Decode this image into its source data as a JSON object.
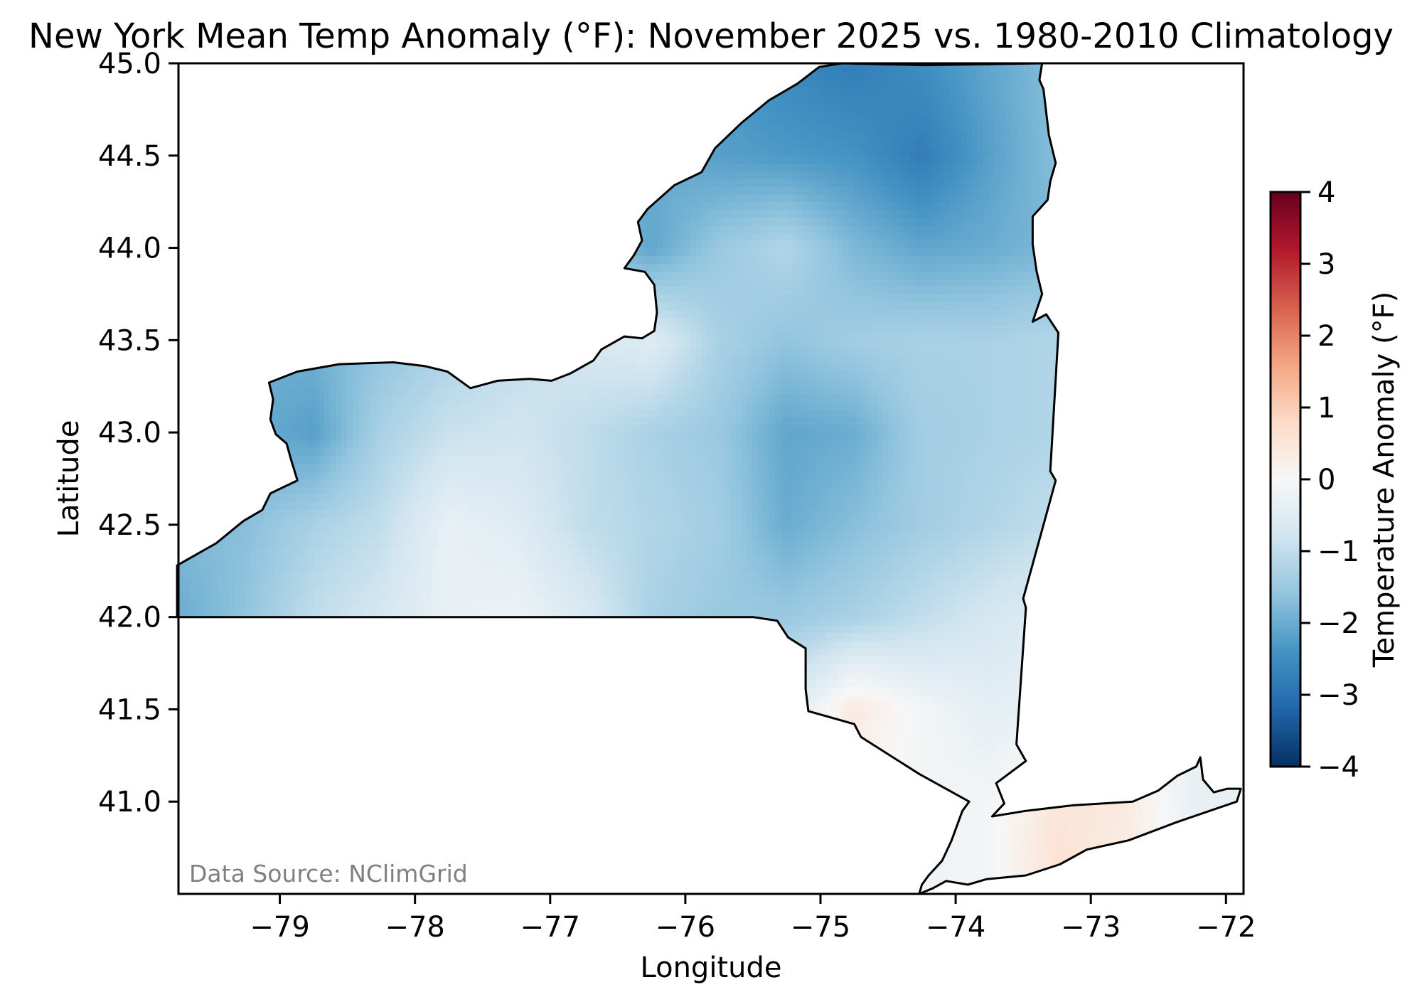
{
  "chart_data": {
    "type": "heatmap",
    "title": "New York Mean Temp Anomaly (°F): November 2025 vs. 1980-2010 Climatology",
    "xlabel": "Longitude",
    "ylabel": "Latitude",
    "xlim": [
      -79.75,
      -71.87
    ],
    "ylim": [
      40.5,
      45.0
    ],
    "grid_lines": false,
    "x_ticks": [
      -79,
      -78,
      -77,
      -76,
      -75,
      -74,
      -73,
      -72
    ],
    "x_tick_labels": [
      "−79",
      "−78",
      "−77",
      "−76",
      "−75",
      "−74",
      "−73",
      "−72"
    ],
    "y_ticks": [
      41.0,
      41.5,
      42.0,
      42.5,
      43.0,
      43.5,
      44.0,
      44.5,
      45.0
    ],
    "y_tick_labels": [
      "41.0",
      "41.5",
      "42.0",
      "42.5",
      "43.0",
      "43.5",
      "44.0",
      "44.5",
      "45.0"
    ],
    "annotation": "Data Source: NClimGrid",
    "colorbar": {
      "label": "Temperature Anomaly (°F)",
      "range": [
        -4,
        4
      ],
      "position": "right",
      "colormap": "RdBu_r",
      "colors": [
        "#053061",
        "#2166ac",
        "#4393c3",
        "#92c5de",
        "#d1e5f0",
        "#f7f7f7",
        "#fddbc7",
        "#f4a582",
        "#d6604d",
        "#b2182b",
        "#67001f"
      ],
      "ticks": [
        -4,
        -3,
        -2,
        -1,
        0,
        1,
        2,
        3,
        4
      ],
      "tick_labels": [
        "−4",
        "−3",
        "−2",
        "−1",
        "0",
        "1",
        "2",
        "3",
        "4"
      ]
    },
    "grid": {
      "lon": [
        -79.75,
        -79.25,
        -78.75,
        -78.25,
        -77.75,
        -77.25,
        -76.75,
        -76.25,
        -75.75,
        -75.25,
        -74.75,
        -74.25,
        -73.75,
        -73.25,
        -72.75,
        -72.25,
        -71.75
      ],
      "lat": [
        45.0,
        44.5,
        44.0,
        43.5,
        43.0,
        42.5,
        42.0,
        41.5,
        41.0,
        40.5
      ],
      "values": [
        [
          -2.0,
          -2.0,
          -2.0,
          -1.8,
          -1.6,
          -1.5,
          -1.6,
          -2.0,
          -2.3,
          -2.6,
          -2.8,
          -2.5,
          -2.1,
          -1.7,
          -1.0,
          -0.5,
          -0.5
        ],
        [
          -2.0,
          -2.0,
          -2.0,
          -1.8,
          -1.6,
          -1.5,
          -1.6,
          -2.0,
          -2.2,
          -2.3,
          -2.4,
          -2.8,
          -2.2,
          -1.7,
          -1.0,
          -0.5,
          -0.5
        ],
        [
          -2.0,
          -2.0,
          -2.0,
          -1.8,
          -1.6,
          -1.5,
          -1.6,
          -2.1,
          -1.5,
          -1.2,
          -1.8,
          -2.1,
          -2.0,
          -1.8,
          -1.0,
          -0.5,
          -0.5
        ],
        [
          -2.0,
          -2.0,
          -1.9,
          -1.6,
          -1.3,
          -1.0,
          -0.7,
          -0.5,
          -1.3,
          -1.6,
          -1.4,
          -1.3,
          -1.3,
          -1.2,
          -1.0,
          -0.5,
          -0.5
        ],
        [
          -1.8,
          -2.0,
          -2.2,
          -1.3,
          -0.9,
          -0.8,
          -1.0,
          -1.3,
          -1.5,
          -2.1,
          -2.0,
          -1.4,
          -1.3,
          -1.2,
          -1.0,
          -0.5,
          -0.5
        ],
        [
          -1.8,
          -1.7,
          -1.3,
          -1.0,
          -0.3,
          -0.5,
          -1.0,
          -1.2,
          -1.4,
          -2.0,
          -1.7,
          -1.4,
          -1.2,
          -1.0,
          -0.8,
          -0.5,
          -0.5
        ],
        [
          -2.0,
          -1.6,
          -1.0,
          -0.7,
          -0.3,
          -0.2,
          -0.6,
          -1.3,
          -1.5,
          -1.5,
          -1.3,
          -1.0,
          -0.7,
          -0.5,
          -0.5,
          -0.5,
          -0.5
        ],
        [
          -1.5,
          -1.5,
          -1.2,
          -0.8,
          -0.5,
          -0.4,
          -0.5,
          -0.7,
          -0.8,
          -0.6,
          0.4,
          -0.1,
          -0.4,
          -0.3,
          -0.3,
          -0.3,
          -0.3
        ],
        [
          -1.0,
          -1.0,
          -0.8,
          -0.6,
          -0.5,
          -0.4,
          -0.4,
          -0.4,
          -0.4,
          -0.3,
          -0.1,
          -0.1,
          -0.1,
          0.5,
          0.4,
          -0.3,
          -0.3
        ],
        [
          -1.0,
          -1.0,
          -0.8,
          -0.6,
          -0.5,
          -0.4,
          -0.4,
          -0.4,
          -0.4,
          -0.3,
          -0.2,
          -0.2,
          -0.1,
          0.6,
          0.3,
          -0.2,
          -0.2
        ]
      ]
    },
    "boundary": [
      [
        -79.76,
        42.0
      ],
      [
        -79.76,
        42.28
      ],
      [
        -79.47,
        42.4
      ],
      [
        -79.27,
        42.52
      ],
      [
        -79.13,
        42.58
      ],
      [
        -79.07,
        42.67
      ],
      [
        -78.87,
        42.74
      ],
      [
        -78.92,
        42.86
      ],
      [
        -78.95,
        42.94
      ],
      [
        -79.03,
        42.99
      ],
      [
        -79.07,
        43.07
      ],
      [
        -79.05,
        43.18
      ],
      [
        -79.08,
        43.27
      ],
      [
        -78.87,
        43.33
      ],
      [
        -78.56,
        43.37
      ],
      [
        -78.16,
        43.38
      ],
      [
        -77.93,
        43.36
      ],
      [
        -77.76,
        43.33
      ],
      [
        -77.59,
        43.24
      ],
      [
        -77.39,
        43.28
      ],
      [
        -77.15,
        43.29
      ],
      [
        -76.99,
        43.28
      ],
      [
        -76.85,
        43.32
      ],
      [
        -76.68,
        43.39
      ],
      [
        -76.62,
        43.45
      ],
      [
        -76.45,
        43.52
      ],
      [
        -76.32,
        43.51
      ],
      [
        -76.23,
        43.55
      ],
      [
        -76.21,
        43.65
      ],
      [
        -76.23,
        43.8
      ],
      [
        -76.3,
        43.87
      ],
      [
        -76.45,
        43.89
      ],
      [
        -76.38,
        43.96
      ],
      [
        -76.32,
        44.04
      ],
      [
        -76.35,
        44.14
      ],
      [
        -76.28,
        44.21
      ],
      [
        -76.08,
        44.34
      ],
      [
        -75.88,
        44.41
      ],
      [
        -75.78,
        44.54
      ],
      [
        -75.58,
        44.68
      ],
      [
        -75.38,
        44.8
      ],
      [
        -75.17,
        44.89
      ],
      [
        -75.01,
        44.98
      ],
      [
        -74.84,
        45.0
      ],
      [
        -74.23,
        44.99
      ],
      [
        -73.36,
        45.0
      ],
      [
        -73.38,
        44.91
      ],
      [
        -73.35,
        44.86
      ],
      [
        -73.31,
        44.61
      ],
      [
        -73.26,
        44.46
      ],
      [
        -73.3,
        44.36
      ],
      [
        -73.32,
        44.26
      ],
      [
        -73.43,
        44.17
      ],
      [
        -73.43,
        44.02
      ],
      [
        -73.4,
        43.87
      ],
      [
        -73.36,
        43.75
      ],
      [
        -73.43,
        43.6
      ],
      [
        -73.33,
        43.64
      ],
      [
        -73.24,
        43.54
      ],
      [
        -73.3,
        42.79
      ],
      [
        -73.26,
        42.74
      ],
      [
        -73.5,
        42.1
      ],
      [
        -73.48,
        42.05
      ],
      [
        -73.55,
        41.31
      ],
      [
        -73.48,
        41.22
      ],
      [
        -73.7,
        41.1
      ],
      [
        -73.64,
        40.99
      ],
      [
        -73.73,
        40.92
      ],
      [
        -73.48,
        40.95
      ],
      [
        -73.13,
        40.98
      ],
      [
        -72.69,
        41.0
      ],
      [
        -72.5,
        41.06
      ],
      [
        -72.36,
        41.14
      ],
      [
        -72.22,
        41.19
      ],
      [
        -72.19,
        41.24
      ],
      [
        -72.17,
        41.12
      ],
      [
        -72.09,
        41.05
      ],
      [
        -71.99,
        41.07
      ],
      [
        -71.89,
        41.07
      ],
      [
        -71.92,
        41.0
      ],
      [
        -72.36,
        40.89
      ],
      [
        -72.72,
        40.79
      ],
      [
        -73.03,
        40.74
      ],
      [
        -73.23,
        40.66
      ],
      [
        -73.48,
        40.6
      ],
      [
        -73.77,
        40.58
      ],
      [
        -73.91,
        40.55
      ],
      [
        -74.07,
        40.57
      ],
      [
        -74.17,
        40.53
      ],
      [
        -74.27,
        40.5
      ],
      [
        -74.25,
        40.55
      ],
      [
        -74.2,
        40.6
      ],
      [
        -74.1,
        40.68
      ],
      [
        -74.03,
        40.79
      ],
      [
        -73.95,
        40.95
      ],
      [
        -73.9,
        41.0
      ],
      [
        -74.27,
        41.15
      ],
      [
        -74.7,
        41.35
      ],
      [
        -74.75,
        41.42
      ],
      [
        -75.09,
        41.49
      ],
      [
        -75.11,
        41.61
      ],
      [
        -75.11,
        41.83
      ],
      [
        -75.24,
        41.89
      ],
      [
        -75.32,
        41.98
      ],
      [
        -75.5,
        42.0
      ],
      [
        -77.05,
        42.0
      ]
    ]
  }
}
